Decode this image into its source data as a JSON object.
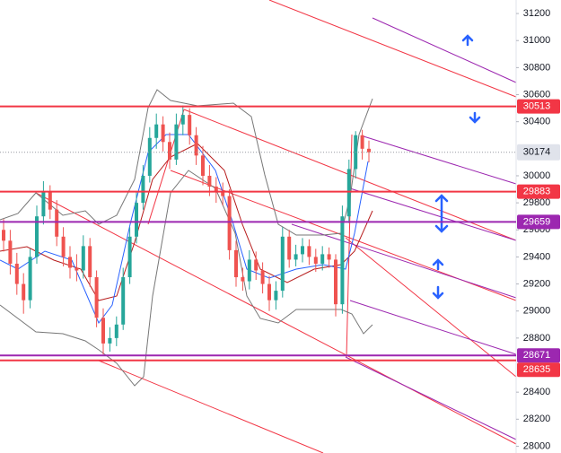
{
  "chart_data": {
    "type": "candlestick",
    "ylim": [
      27950,
      31300
    ],
    "yticks": [
      28000,
      28200,
      28400,
      28800,
      29000,
      29200,
      29400,
      29600,
      29800,
      30000,
      30400,
      30600,
      30800,
      31000,
      31200
    ],
    "up_color": "#26a69a",
    "down_color": "#ef5350",
    "open": [
      29600,
      29520,
      29350,
      29200,
      29080,
      29400,
      29700,
      29880,
      29750,
      29550,
      29400,
      29320,
      29300,
      29480,
      29250,
      28950,
      28760,
      28800,
      28900,
      29250,
      29550,
      29800,
      30000,
      30280,
      30380,
      30250,
      30120,
      30380,
      30450,
      30300,
      30150,
      30000,
      29920,
      29880,
      29850,
      29450,
      29250,
      29220,
      29380,
      29300,
      29200,
      29080,
      29150,
      29550,
      29380,
      29420,
      29480,
      29400,
      29350,
      29420,
      29380,
      29050,
      29700,
      30050,
      30300,
      30200
    ],
    "high": [
      29680,
      29600,
      29430,
      29280,
      29460,
      29780,
      29960,
      29930,
      29820,
      29620,
      29480,
      29420,
      29560,
      29540,
      29300,
      29020,
      28880,
      28960,
      29320,
      29620,
      29880,
      30080,
      30360,
      30460,
      30440,
      30320,
      30460,
      30520,
      30500,
      30360,
      30220,
      30080,
      29990,
      29950,
      29900,
      29520,
      29320,
      29450,
      29440,
      29360,
      29260,
      29220,
      29620,
      29600,
      29490,
      29540,
      29530,
      29460,
      29480,
      29470,
      29420,
      29780,
      30120,
      30330,
      30340,
      30260
    ],
    "low": [
      29440,
      29270,
      29120,
      28980,
      29020,
      29350,
      29640,
      29680,
      29480,
      29330,
      29240,
      29220,
      29240,
      29180,
      28880,
      28680,
      28700,
      28740,
      28860,
      29200,
      29500,
      29750,
      29950,
      30200,
      30180,
      30050,
      30080,
      30300,
      30230,
      30080,
      29930,
      29850,
      29800,
      29780,
      29380,
      29180,
      29150,
      29160,
      29230,
      29130,
      29000,
      29010,
      29100,
      29320,
      29330,
      29360,
      29340,
      29290,
      29300,
      29320,
      28960,
      28980,
      29650,
      29980,
      30120,
      30100
    ],
    "close": [
      29520,
      29350,
      29200,
      29080,
      29400,
      29700,
      29880,
      29750,
      29550,
      29400,
      29320,
      29300,
      29480,
      29250,
      28950,
      28760,
      28800,
      28900,
      29250,
      29550,
      29800,
      30000,
      30280,
      30380,
      30250,
      30120,
      30380,
      30450,
      30300,
      30150,
      30000,
      29920,
      29880,
      29850,
      29450,
      29250,
      29220,
      29380,
      29300,
      29200,
      29080,
      29150,
      29550,
      29380,
      29420,
      29480,
      29400,
      29350,
      29420,
      29380,
      29050,
      29700,
      30050,
      30300,
      30200,
      30174
    ],
    "price_lines": [
      {
        "value": 30513,
        "color": "#f23645"
      },
      {
        "value": 29883,
        "color": "#f23645"
      },
      {
        "value": 29659,
        "color": "#9c27b0"
      },
      {
        "value": 28671,
        "color": "#9c27b0"
      },
      {
        "value": 28635,
        "color": "#f23645"
      }
    ],
    "last_price": 30174
  }
}
